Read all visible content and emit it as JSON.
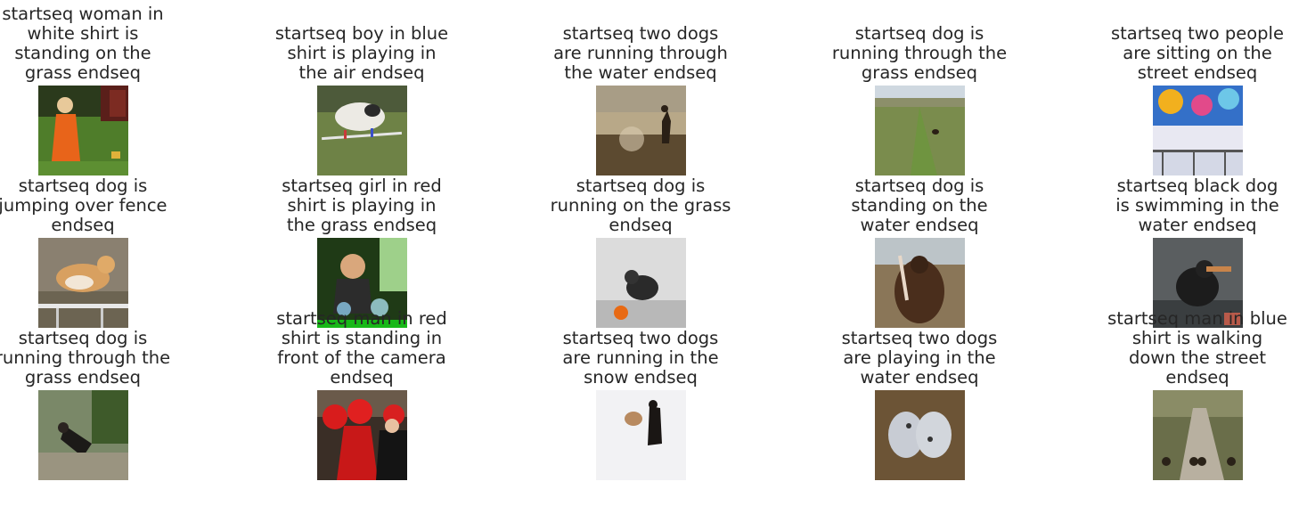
{
  "grid": {
    "cells": [
      {
        "caption": "startseq woman in\nwhite shirt is\nstanding on the\ngrass endseq",
        "image_subject": "young girl in orange dress on grass with sprinkler"
      },
      {
        "caption": "startseq boy in blue\nshirt is playing in\nthe air endseq",
        "image_subject": "white dog jumping over agility poles"
      },
      {
        "caption": "startseq two dogs\nare running through\nthe water endseq",
        "image_subject": "child silhouette splashing in water"
      },
      {
        "caption": "startseq dog is\nrunning through the\ngrass endseq",
        "image_subject": "small dog on grassy hill path"
      },
      {
        "caption": "startseq two people\nare sitting on the\nstreet endseq",
        "image_subject": "colorful graffiti wall with railing"
      },
      {
        "caption": "startseq dog is\njumping over fence\nendseq",
        "image_subject": "corgi jumping over fence bar"
      },
      {
        "caption": "startseq girl in red\nshirt is playing in\nthe grass endseq",
        "image_subject": "child playing with water splash"
      },
      {
        "caption": "startseq dog is\nrunning on the grass\nendseq",
        "image_subject": "black dog with orange ball indoors"
      },
      {
        "caption": "startseq dog is\nstanding on the\nwater endseq",
        "image_subject": "brown dog holding stick outdoors"
      },
      {
        "caption": "startseq black dog\nis swimming in the\nwater endseq",
        "image_subject": "black dog swimming with toy"
      },
      {
        "caption": "startseq dog is\nrunning through the\ngrass endseq",
        "image_subject": "black dog running in woods"
      },
      {
        "caption": "startseq man in red\nshirt is standing in\nfront of the camera\nendseq",
        "image_subject": "people in red costumes"
      },
      {
        "caption": "startseq two dogs\nare running in the\nsnow endseq",
        "image_subject": "two dogs in snow"
      },
      {
        "caption": "startseq two dogs\nare playing in the\nwater endseq",
        "image_subject": "two spotted dogs outdoors"
      },
      {
        "caption": "startseq man in blue\nshirt is walking\ndown the street\nendseq",
        "image_subject": "dogs walking on a path with people"
      }
    ]
  },
  "colors": {
    "background": "#ffffff",
    "caption_text": "#262626"
  }
}
